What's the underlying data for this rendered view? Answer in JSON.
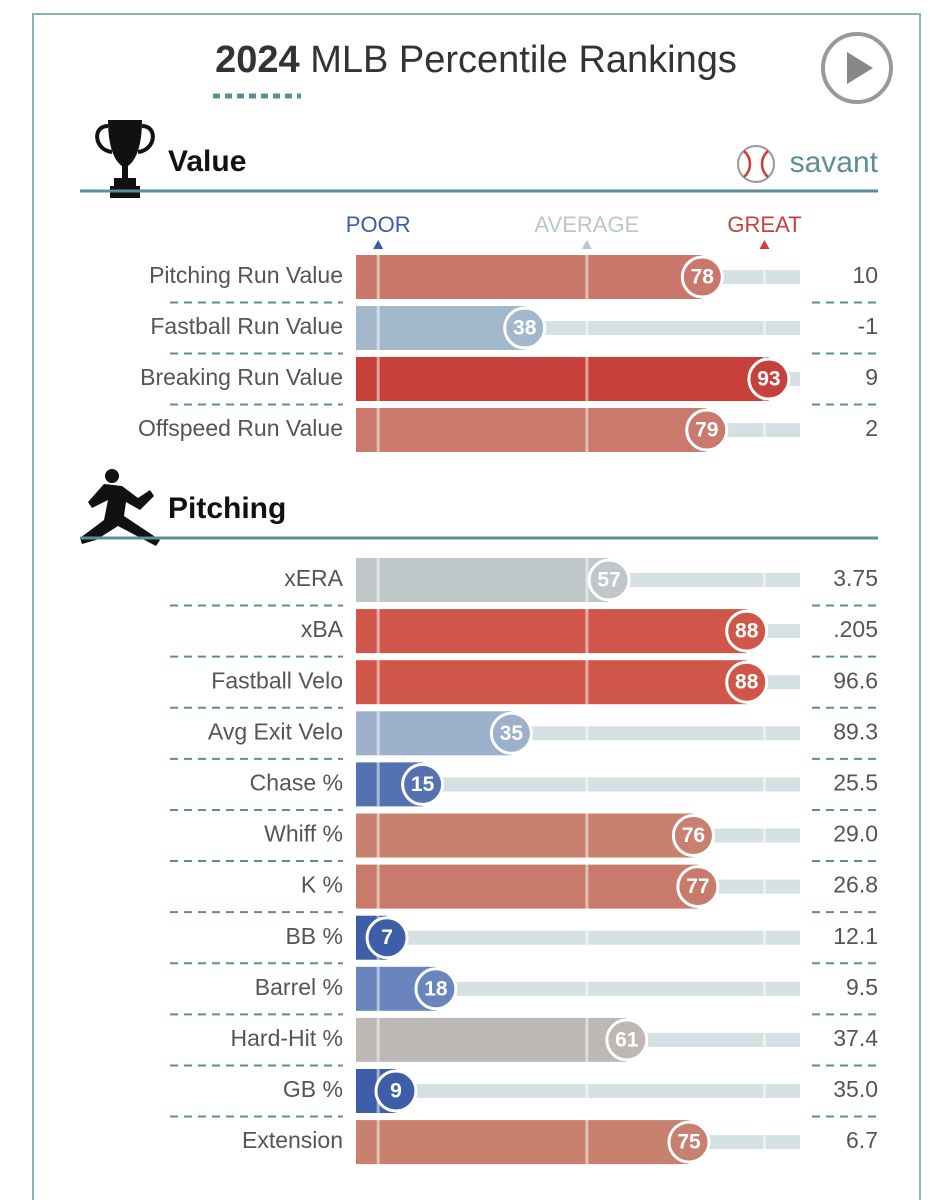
{
  "header": {
    "year": "2024",
    "title": "MLB Percentile Rankings",
    "brand": "savant"
  },
  "chart_data": [
    {
      "type": "bar",
      "orientation": "horizontal",
      "title": "Value",
      "xlim": [
        0,
        100
      ],
      "xticks": [
        {
          "value": 5,
          "label": "POOR"
        },
        {
          "value": 52,
          "label": "AVERAGE"
        },
        {
          "value": 92,
          "label": "GREAT"
        }
      ],
      "tick_colors": [
        "#3b5ca6",
        "#b9c7cc",
        "#c7413a"
      ],
      "categories": [
        "Pitching Run Value",
        "Fastball Run Value",
        "Breaking Run Value",
        "Offspeed Run Value"
      ],
      "values": [
        78,
        38,
        93,
        79
      ],
      "colors": [
        "#c9786b",
        "#a3b8ca",
        "#c7413a",
        "#c97a6d"
      ],
      "stats": [
        "10",
        "-1",
        "9",
        "2"
      ]
    },
    {
      "type": "bar",
      "orientation": "horizontal",
      "title": "Pitching",
      "xlim": [
        0,
        100
      ],
      "categories": [
        "xERA",
        "xBA",
        "Fastball Velo",
        "Avg Exit Velo",
        "Chase %",
        "Whiff %",
        "K %",
        "BB %",
        "Barrel %",
        "Hard-Hit %",
        "GB %",
        "Extension"
      ],
      "values": [
        57,
        88,
        88,
        35,
        15,
        76,
        77,
        7,
        18,
        61,
        9,
        75
      ],
      "colors": [
        "#bfc7c9",
        "#d0564a",
        "#d0564a",
        "#9cb0cc",
        "#5472b2",
        "#c8806f",
        "#c87a6b",
        "#3e5ea8",
        "#6a85bd",
        "#bdb8b5",
        "#3f5ea9",
        "#c8806f"
      ],
      "stats": [
        "3.75",
        ".205",
        "96.6",
        "89.3",
        "25.5",
        "29.0",
        "26.8",
        "12.1",
        "9.5",
        "37.4",
        "35.0",
        "6.7"
      ]
    }
  ]
}
